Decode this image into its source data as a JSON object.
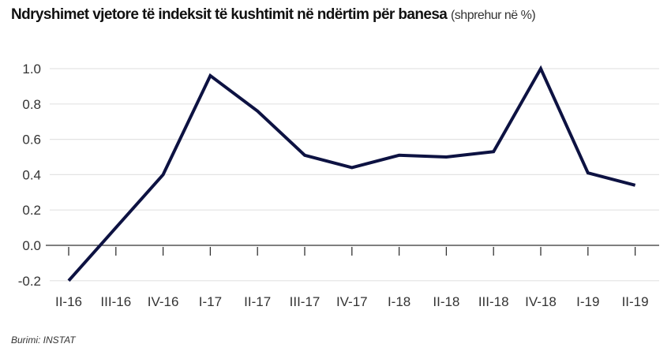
{
  "chart_data": {
    "type": "line",
    "title": "Ndryshimet vjetore të indeksit të kushtimit në ndërtim për banesa",
    "subtitle": "(shprehur në %)",
    "source": "Burimi: INSTAT",
    "xlabel": "",
    "ylabel": "",
    "categories": [
      "II-16",
      "III-16",
      "IV-16",
      "I-17",
      "II-17",
      "III-17",
      "IV-17",
      "I-18",
      "II-18",
      "III-18",
      "IV-18",
      "I-19",
      "II-19"
    ],
    "values": [
      -0.2,
      0.1,
      0.4,
      0.96,
      0.76,
      0.51,
      0.44,
      0.51,
      0.5,
      0.53,
      1.0,
      0.41,
      0.34
    ],
    "ylim": [
      -0.2,
      1.0
    ],
    "yticks": [
      "-0.2",
      "0.0",
      "0.2",
      "0.4",
      "0.6",
      "0.8",
      "1.0"
    ],
    "grid": true,
    "line_color": "#0d1242"
  }
}
